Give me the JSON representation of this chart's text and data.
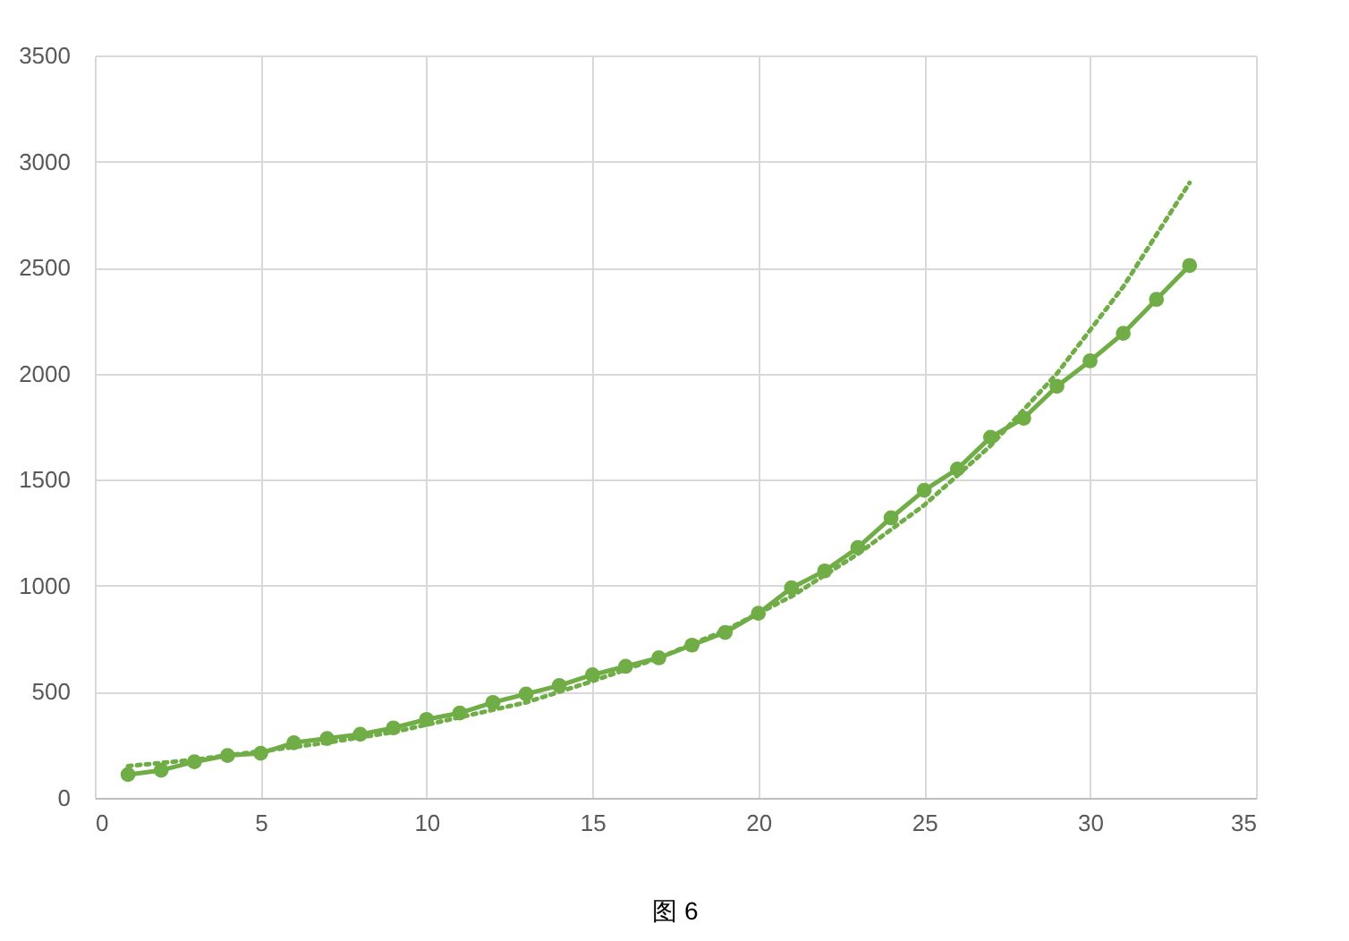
{
  "chart_data": {
    "type": "line",
    "x": [
      1,
      2,
      3,
      4,
      5,
      6,
      7,
      8,
      9,
      10,
      11,
      12,
      13,
      14,
      15,
      16,
      17,
      18,
      19,
      20,
      21,
      22,
      23,
      24,
      25,
      26,
      27,
      28,
      29,
      30,
      31,
      32,
      33
    ],
    "series": [
      {
        "color": "#70ad47",
        "marker": "circle",
        "line_style": "solid",
        "values": [
          110,
          130,
          170,
          200,
          210,
          260,
          280,
          300,
          330,
          370,
          400,
          450,
          490,
          530,
          580,
          620,
          660,
          720,
          780,
          870,
          990,
          1070,
          1180,
          1320,
          1450,
          1550,
          1700,
          1790,
          1940,
          2060,
          2190,
          2350,
          2510
        ]
      },
      {
        "type": "line",
        "color": "#70ad47",
        "marker": "none",
        "line_style": "dotted",
        "x": [
          1,
          3,
          5,
          7,
          9,
          11,
          13,
          15,
          17,
          19,
          21,
          23,
          25,
          27,
          29,
          31,
          33
        ],
        "values": [
          150,
          180,
          220,
          260,
          310,
          380,
          450,
          550,
          660,
          790,
          950,
          1150,
          1380,
          1660,
          2000,
          2410,
          2900
        ]
      }
    ],
    "xlim": [
      0,
      35
    ],
    "xticks": [
      0,
      5,
      10,
      15,
      20,
      25,
      30,
      35
    ],
    "ylim": [
      0,
      3500
    ],
    "yticks": [
      0,
      500,
      1000,
      1500,
      2000,
      2500,
      3000,
      3500
    ],
    "grid": true,
    "annotations": [
      "图 6"
    ]
  }
}
